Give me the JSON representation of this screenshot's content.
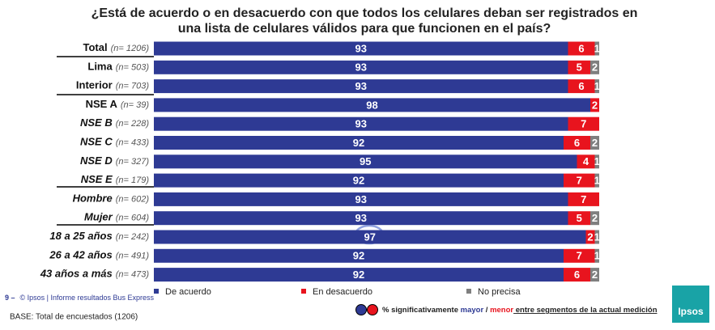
{
  "chart_data": {
    "type": "stacked-bar",
    "title": [
      "¿Está de acuerdo o en desacuerdo con que todos los celulares deban ser registrados en",
      "una lista de celulares válidos para que funcionen en el país?"
    ],
    "categories": [
      "Total",
      "Lima",
      "Interior",
      "NSE A",
      "NSE B",
      "NSE C",
      "NSE D",
      "NSE E",
      "Hombre",
      "Mujer",
      "18 a 25 años",
      "26 a 42 años",
      "43 años a más"
    ],
    "sample_sizes": [
      "(n= 1206)",
      "(n= 503)",
      "(n= 703)",
      "(n= 39)",
      "(n= 228)",
      "(n= 433)",
      "(n= 327)",
      "(n= 179)",
      "(n= 602)",
      "(n= 604)",
      "(n= 242)",
      "(n= 491)",
      "(n= 473)"
    ],
    "series": [
      {
        "name": "De acuerdo",
        "color": "#2e3a94",
        "values": [
          93,
          93,
          93,
          98,
          93,
          92,
          95,
          92,
          93,
          93,
          97,
          92,
          92
        ]
      },
      {
        "name": "En desacuerdo",
        "color": "#e8141e",
        "values": [
          6,
          5,
          6,
          2,
          7,
          6,
          4,
          7,
          7,
          5,
          2,
          7,
          6
        ]
      },
      {
        "name": "No precisa",
        "color": "#7f7f7f",
        "values": [
          1,
          2,
          1,
          null,
          null,
          2,
          1,
          1,
          null,
          2,
          1,
          1,
          2
        ]
      }
    ],
    "xlim": [
      0,
      100
    ],
    "significance_note": [
      "% significativamente ",
      "mayor",
      " / ",
      "menor",
      " entre segmentos de la actual medición"
    ],
    "page_number": "9 –",
    "footer": "© Ipsos | Informe resultados Bus Express",
    "base": "BASE: Total de encuestados (1206)",
    "logo": "Ipsos"
  }
}
